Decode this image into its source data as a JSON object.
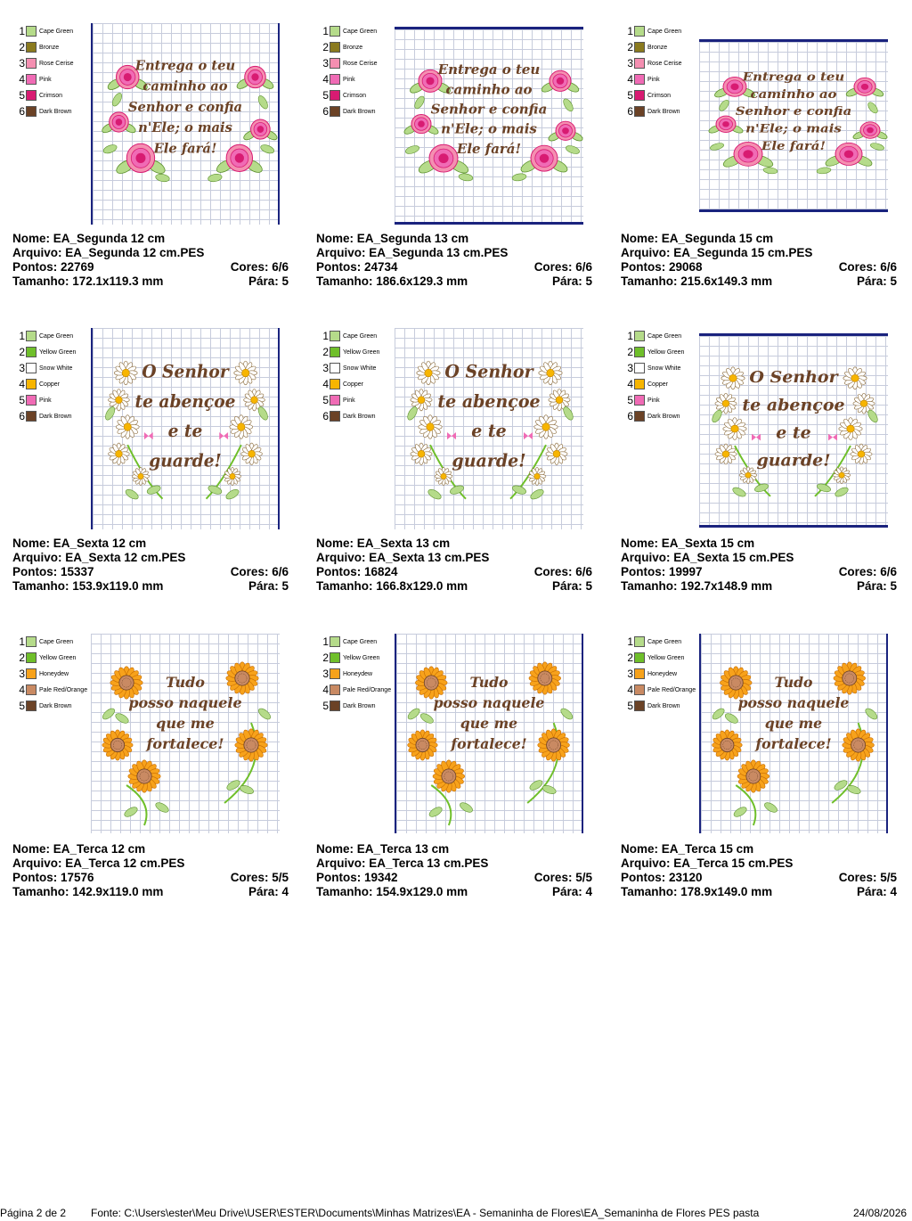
{
  "labels": {
    "nome": "Nome:",
    "arquivo": "Arquivo:",
    "pontos": "Pontos:",
    "cores": "Cores:",
    "tamanho": "Tamanho:",
    "para": "Pára:"
  },
  "designs": [
    {
      "nome": "EA_Segunda 12 cm",
      "arquivo": "EA_Segunda 12 cm.PES",
      "pontos": "22769",
      "cores": "6/6",
      "tamanho": "172.1x119.3 mm",
      "para": "5",
      "motif": "roses",
      "phrase": [
        "Entrega o teu",
        "caminho ao",
        "Senhor e confia",
        "n'Ele; o mais",
        "Ele fará!"
      ],
      "colors": [
        {
          "n": "1",
          "name": "Cape Green",
          "hex": "#b5db8a"
        },
        {
          "n": "2",
          "name": "Bronze",
          "hex": "#8a7a1e"
        },
        {
          "n": "3",
          "name": "Rose Cerise",
          "hex": "#f48fb1"
        },
        {
          "n": "4",
          "name": "Pink",
          "hex": "#f06bb5"
        },
        {
          "n": "5",
          "name": "Crimson",
          "hex": "#d81b72"
        },
        {
          "n": "6",
          "name": "Dark Brown",
          "hex": "#6b4226"
        }
      ]
    },
    {
      "nome": "EA_Segunda 13 cm",
      "arquivo": "EA_Segunda 13 cm.PES",
      "pontos": "24734",
      "cores": "6/6",
      "tamanho": "186.6x129.3 mm",
      "para": "5",
      "motif": "roses",
      "phrase": [
        "Entrega o teu",
        "caminho ao",
        "Senhor e confia",
        "n'Ele; o mais",
        "Ele fará!"
      ],
      "colors": [
        {
          "n": "1",
          "name": "Cape Green",
          "hex": "#b5db8a"
        },
        {
          "n": "2",
          "name": "Bronze",
          "hex": "#8a7a1e"
        },
        {
          "n": "3",
          "name": "Rose Cerise",
          "hex": "#f48fb1"
        },
        {
          "n": "4",
          "name": "Pink",
          "hex": "#f06bb5"
        },
        {
          "n": "5",
          "name": "Crimson",
          "hex": "#d81b72"
        },
        {
          "n": "6",
          "name": "Dark Brown",
          "hex": "#6b4226"
        }
      ]
    },
    {
      "nome": "EA_Segunda 15 cm",
      "arquivo": "EA_Segunda 15 cm.PES",
      "pontos": "29068",
      "cores": "6/6",
      "tamanho": "215.6x149.3 mm",
      "para": "5",
      "motif": "roses",
      "phrase": [
        "Entrega o teu",
        "caminho ao",
        "Senhor e confia",
        "n'Ele; o mais",
        "Ele fará!"
      ],
      "colors": [
        {
          "n": "1",
          "name": "Cape Green",
          "hex": "#b5db8a"
        },
        {
          "n": "2",
          "name": "Bronze",
          "hex": "#8a7a1e"
        },
        {
          "n": "3",
          "name": "Rose Cerise",
          "hex": "#f48fb1"
        },
        {
          "n": "4",
          "name": "Pink",
          "hex": "#f06bb5"
        },
        {
          "n": "5",
          "name": "Crimson",
          "hex": "#d81b72"
        },
        {
          "n": "6",
          "name": "Dark Brown",
          "hex": "#6b4226"
        }
      ]
    },
    {
      "nome": "EA_Sexta 12 cm",
      "arquivo": "EA_Sexta 12 cm.PES",
      "pontos": "15337",
      "cores": "6/6",
      "tamanho": "153.9x119.0 mm",
      "para": "5",
      "motif": "daisies",
      "phrase": [
        "O Senhor",
        "te abençoe",
        "e te",
        "guarde!"
      ],
      "colors": [
        {
          "n": "1",
          "name": "Cape Green",
          "hex": "#b5db8a"
        },
        {
          "n": "2",
          "name": "Yellow Green",
          "hex": "#6fbf2a"
        },
        {
          "n": "3",
          "name": "Snow White",
          "hex": "#ffffff"
        },
        {
          "n": "4",
          "name": "Copper",
          "hex": "#f7b500"
        },
        {
          "n": "5",
          "name": "Pink",
          "hex": "#f06bb5"
        },
        {
          "n": "6",
          "name": "Dark Brown",
          "hex": "#6b4226"
        }
      ]
    },
    {
      "nome": "EA_Sexta 13 cm",
      "arquivo": "EA_Sexta 13 cm.PES",
      "pontos": "16824",
      "cores": "6/6",
      "tamanho": "166.8x129.0 mm",
      "para": "5",
      "motif": "daisies",
      "phrase": [
        "O Senhor",
        "te abençoe",
        "e te",
        "guarde!"
      ],
      "colors": [
        {
          "n": "1",
          "name": "Cape Green",
          "hex": "#b5db8a"
        },
        {
          "n": "2",
          "name": "Yellow Green",
          "hex": "#6fbf2a"
        },
        {
          "n": "3",
          "name": "Snow White",
          "hex": "#ffffff"
        },
        {
          "n": "4",
          "name": "Copper",
          "hex": "#f7b500"
        },
        {
          "n": "5",
          "name": "Pink",
          "hex": "#f06bb5"
        },
        {
          "n": "6",
          "name": "Dark Brown",
          "hex": "#6b4226"
        }
      ]
    },
    {
      "nome": "EA_Sexta 15 cm",
      "arquivo": "EA_Sexta 15 cm.PES",
      "pontos": "19997",
      "cores": "6/6",
      "tamanho": "192.7x148.9 mm",
      "para": "5",
      "motif": "daisies",
      "phrase": [
        "O Senhor",
        "te abençoe",
        "e te",
        "guarde!"
      ],
      "colors": [
        {
          "n": "1",
          "name": "Cape Green",
          "hex": "#b5db8a"
        },
        {
          "n": "2",
          "name": "Yellow Green",
          "hex": "#6fbf2a"
        },
        {
          "n": "3",
          "name": "Snow White",
          "hex": "#ffffff"
        },
        {
          "n": "4",
          "name": "Copper",
          "hex": "#f7b500"
        },
        {
          "n": "5",
          "name": "Pink",
          "hex": "#f06bb5"
        },
        {
          "n": "6",
          "name": "Dark Brown",
          "hex": "#6b4226"
        }
      ]
    },
    {
      "nome": "EA_Terca 12 cm",
      "arquivo": "EA_Terca 12 cm.PES",
      "pontos": "17576",
      "cores": "5/5",
      "tamanho": "142.9x119.0 mm",
      "para": "4",
      "motif": "sunflowers",
      "phrase": [
        "Tudo",
        "posso naquele",
        "que me",
        "fortalece!"
      ],
      "colors": [
        {
          "n": "1",
          "name": "Cape Green",
          "hex": "#b5db8a"
        },
        {
          "n": "2",
          "name": "Yellow Green",
          "hex": "#6fbf2a"
        },
        {
          "n": "3",
          "name": "Honeydew",
          "hex": "#f7a21b"
        },
        {
          "n": "4",
          "name": "Pale Red/Orange",
          "hex": "#c98a63"
        },
        {
          "n": "5",
          "name": "Dark Brown",
          "hex": "#6b4226"
        }
      ]
    },
    {
      "nome": "EA_Terca 13 cm",
      "arquivo": "EA_Terca 13 cm.PES",
      "pontos": "19342",
      "cores": "5/5",
      "tamanho": "154.9x129.0 mm",
      "para": "4",
      "motif": "sunflowers",
      "phrase": [
        "Tudo",
        "posso naquele",
        "que me",
        "fortalece!"
      ],
      "colors": [
        {
          "n": "1",
          "name": "Cape Green",
          "hex": "#b5db8a"
        },
        {
          "n": "2",
          "name": "Yellow Green",
          "hex": "#6fbf2a"
        },
        {
          "n": "3",
          "name": "Honeydew",
          "hex": "#f7a21b"
        },
        {
          "n": "4",
          "name": "Pale Red/Orange",
          "hex": "#c98a63"
        },
        {
          "n": "5",
          "name": "Dark Brown",
          "hex": "#6b4226"
        }
      ]
    },
    {
      "nome": "EA_Terca 15 cm",
      "arquivo": "EA_Terca 15 cm.PES",
      "pontos": "23120",
      "cores": "5/5",
      "tamanho": "178.9x149.0 mm",
      "para": "4",
      "motif": "sunflowers",
      "phrase": [
        "Tudo",
        "posso naquele",
        "que me",
        "fortalece!"
      ],
      "colors": [
        {
          "n": "1",
          "name": "Cape Green",
          "hex": "#b5db8a"
        },
        {
          "n": "2",
          "name": "Yellow Green",
          "hex": "#6fbf2a"
        },
        {
          "n": "3",
          "name": "Honeydew",
          "hex": "#f7a21b"
        },
        {
          "n": "4",
          "name": "Pale Red/Orange",
          "hex": "#c98a63"
        },
        {
          "n": "5",
          "name": "Dark Brown",
          "hex": "#6b4226"
        }
      ]
    }
  ],
  "footer": {
    "page": "Página 2 de 2",
    "source": "Fonte: C:\\Users\\ester\\Meu Drive\\USER\\ESTER\\Documents\\Minhas Matrizes\\EA - Semaninha de Flores\\EA_Semaninha de Flores PES pasta",
    "date": "24/08/2026"
  },
  "accent": {
    "hoop": "#1a237e",
    "grid": "#c7ccdc",
    "text": "#6b4226"
  }
}
